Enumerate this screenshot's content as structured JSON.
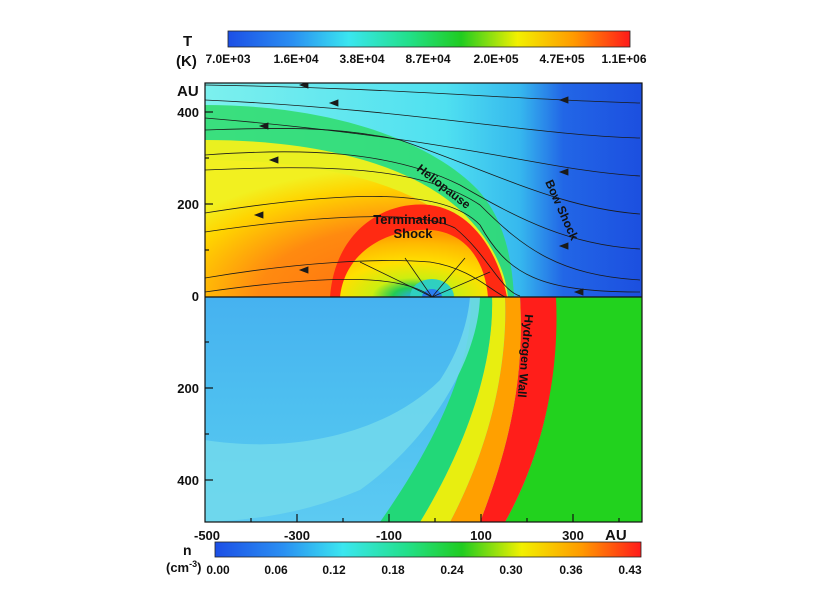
{
  "temperature_scale": {
    "symbol": "T",
    "unit": "(K)",
    "ticks": [
      "7.0E+03",
      "1.6E+04",
      "3.8E+04",
      "8.7E+04",
      "2.0E+05",
      "4.7E+05",
      "1.1E+06"
    ]
  },
  "density_scale": {
    "symbol": "n",
    "unit": "(cm",
    "unit_exp": "-3",
    "unit_close": ")",
    "ticks": [
      "0.00",
      "0.06",
      "0.12",
      "0.18",
      "0.24",
      "0.30",
      "0.36",
      "0.43"
    ]
  },
  "top_panel": {
    "axis_unit": "AU",
    "y_ticks": [
      "400",
      "200",
      "0"
    ]
  },
  "bottom_panel": {
    "y_ticks": [
      "200",
      "400"
    ]
  },
  "x_axis": {
    "unit": "AU",
    "ticks": [
      "-500",
      "-300",
      "-100",
      "100",
      "300"
    ]
  },
  "annotations": {
    "heliopause": "Heliopause",
    "bow_shock": "Bow Shock",
    "termination_line1": "Termination",
    "termination_line2": "Shock",
    "hydrogen_wall": "Hydrogen Wall"
  },
  "colors": {
    "scale": [
      "#1e50e0",
      "#2d8ff0",
      "#36e0ee",
      "#1ee08a",
      "#22cc22",
      "#f0f000",
      "#ff9a00",
      "#ff1c1c"
    ]
  }
}
